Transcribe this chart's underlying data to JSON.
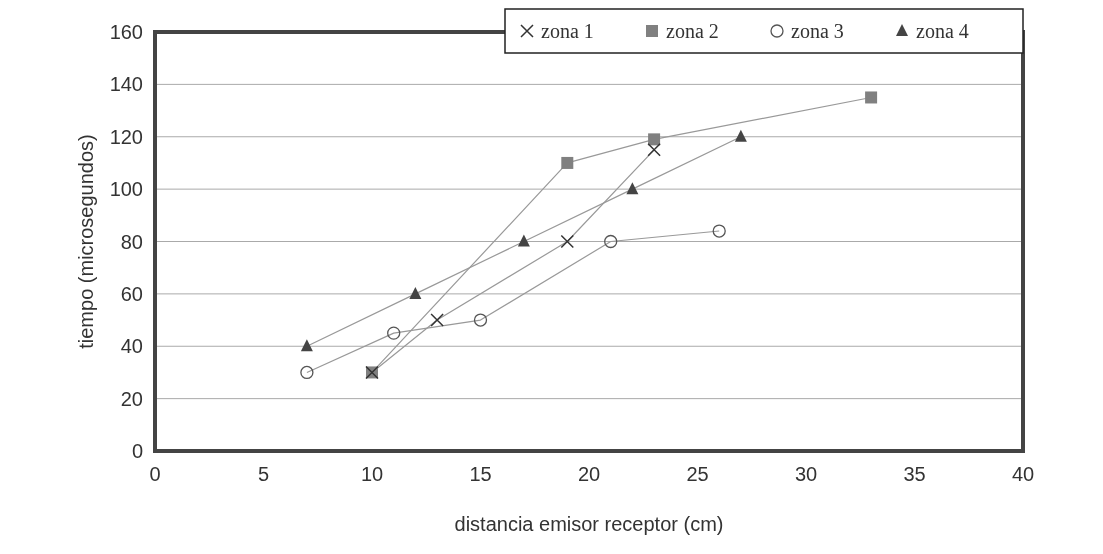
{
  "chart_data": {
    "type": "line",
    "xlabel": "distancia emisor receptor (cm)",
    "ylabel": "tiempo (microsegundos)",
    "xlim": [
      0,
      40
    ],
    "xticks": [
      0,
      5,
      10,
      15,
      20,
      25,
      30,
      35,
      40
    ],
    "ylim": [
      0,
      160
    ],
    "yticks": [
      0,
      20,
      40,
      60,
      80,
      100,
      120,
      140,
      160
    ],
    "grid": "y",
    "legend": "top right",
    "line_style": "solid",
    "series": [
      {
        "name": "zona 1",
        "color": "#333333",
        "marker": "cross",
        "x": [
          10,
          13,
          19,
          23
        ],
        "values": [
          30,
          50,
          80,
          115
        ]
      },
      {
        "name": "zona 2",
        "color": "#808080",
        "marker": "square",
        "x": [
          10,
          19,
          23,
          33
        ],
        "values": [
          30,
          110,
          119,
          135
        ]
      },
      {
        "name": "zona 3",
        "color": "#555555",
        "marker": "circle",
        "x": [
          7,
          11,
          15,
          21,
          26
        ],
        "values": [
          30,
          45,
          50,
          80,
          84
        ]
      },
      {
        "name": "zona 4",
        "color": "#444444",
        "marker": "triangle",
        "x": [
          7,
          12,
          17,
          22,
          27
        ],
        "values": [
          40,
          60,
          80,
          100,
          120
        ]
      }
    ]
  }
}
